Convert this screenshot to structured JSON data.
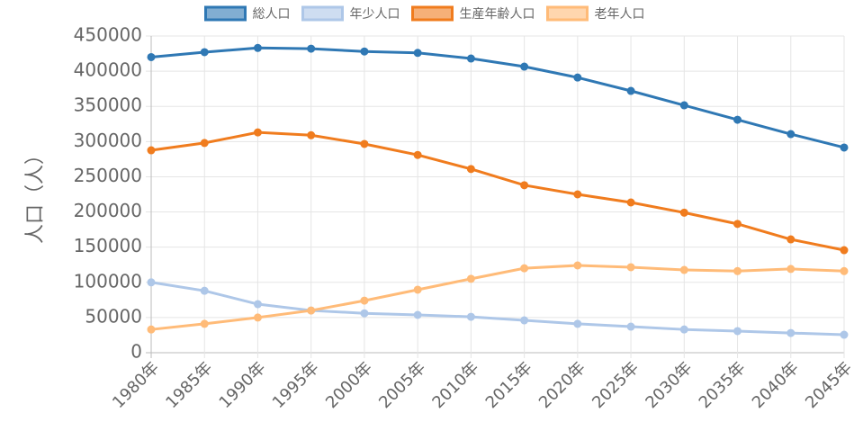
{
  "chart_data": {
    "type": "line",
    "y_label": "人口（人）",
    "categories": [
      "1980年",
      "1985年",
      "1990年",
      "1995年",
      "2000年",
      "2005年",
      "2010年",
      "2015年",
      "2020年",
      "2025年",
      "2030年",
      "2035年",
      "2040年",
      "2045年"
    ],
    "series": [
      {
        "name": "総人口",
        "color": "#2f78b4",
        "values": [
          420000,
          427000,
          433000,
          432000,
          428000,
          426000,
          418000,
          406500,
          391000,
          372000,
          351500,
          331000,
          310600,
          291500
        ]
      },
      {
        "name": "年少人口",
        "color": "#aec7e8",
        "values": [
          100000,
          88000,
          69000,
          60000,
          56000,
          53700,
          51000,
          46000,
          41000,
          37000,
          33000,
          30700,
          28000,
          25500
        ]
      },
      {
        "name": "生産年齢人口",
        "color": "#f07c1e",
        "values": [
          287600,
          298000,
          313000,
          309000,
          296600,
          281000,
          261000,
          238000,
          225000,
          213500,
          199000,
          183000,
          161000,
          145700
        ]
      },
      {
        "name": "老年人口",
        "color": "#ffbb78",
        "values": [
          33000,
          41000,
          50000,
          60000,
          74000,
          89500,
          105000,
          120000,
          124000,
          121500,
          117600,
          116000,
          119000,
          116000
        ]
      }
    ],
    "ylim": [
      0,
      450000
    ],
    "yticks": [
      0,
      50000,
      100000,
      150000,
      200000,
      250000,
      300000,
      350000,
      400000,
      450000
    ],
    "grid": true,
    "legend": "top"
  }
}
